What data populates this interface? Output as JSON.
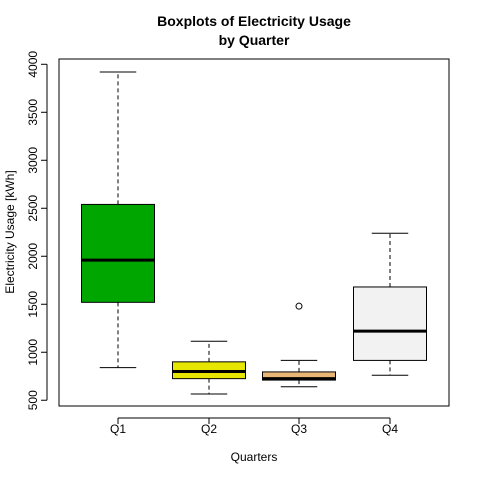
{
  "chart_data": {
    "type": "boxplot",
    "title_lines": [
      "Boxplots of Electricity Usage",
      "by Quarter"
    ],
    "xlabel": "Quarters",
    "ylabel": "Electricity Usage [kWh]",
    "ylim": [
      440,
      4055
    ],
    "yticks": [
      500,
      1000,
      1500,
      2000,
      2500,
      3000,
      3500,
      4000
    ],
    "categories": [
      "Q1",
      "Q2",
      "Q3",
      "Q4"
    ],
    "boxes": [
      {
        "name": "Q1",
        "whisker_low": 840,
        "q1": 1520,
        "median": 1960,
        "q3": 2540,
        "whisker_high": 3920,
        "outliers": [],
        "color": "#00a600"
      },
      {
        "name": "Q2",
        "whisker_low": 565,
        "q1": 725,
        "median": 800,
        "q3": 900,
        "whisker_high": 1115,
        "outliers": [],
        "color": "#e6e600"
      },
      {
        "name": "Q3",
        "whisker_low": 640,
        "q1": 710,
        "median": 725,
        "q3": 795,
        "whisker_high": 915,
        "outliers": [
          1480
        ],
        "color": "#eab676"
      },
      {
        "name": "Q4",
        "whisker_low": 760,
        "q1": 915,
        "median": 1220,
        "q3": 1680,
        "whisker_high": 2240,
        "outliers": [],
        "color": "#f2f2f2"
      }
    ],
    "grid": false,
    "legend": "none"
  }
}
